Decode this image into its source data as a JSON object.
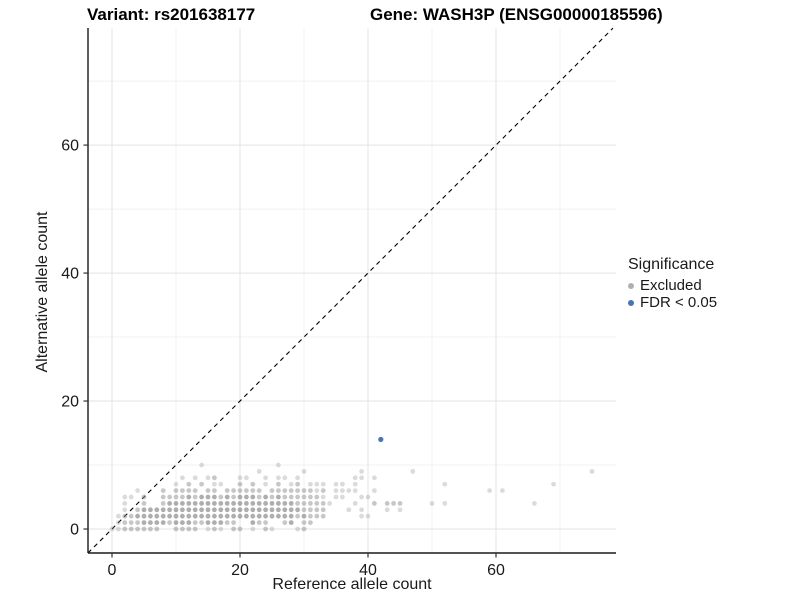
{
  "titles": {
    "variant": "Variant: rs201638177",
    "gene": "Gene: WASH3P (ENSG00000185596)"
  },
  "axes": {
    "x_label": "Reference allele count",
    "y_label": "Alternative allele count"
  },
  "legend": {
    "title": "Significance",
    "items": [
      {
        "label": "Excluded",
        "color": "#b0b0b0"
      },
      {
        "label": "FDR < 0.05",
        "color": "#4575b4"
      }
    ]
  },
  "chart_data": {
    "type": "scatter",
    "xlabel": "Reference allele count",
    "ylabel": "Alternative allele count",
    "xlim": [
      -3.75,
      78.75
    ],
    "ylim": [
      -3.75,
      78.3
    ],
    "x_ticks": [
      0,
      20,
      40,
      60
    ],
    "y_ticks": [
      0,
      20,
      40,
      60
    ],
    "minor_ticks": [
      10,
      30,
      50,
      70
    ],
    "grid": {
      "major_color": "#e3e3e3",
      "minor_color": "#f1f1f1"
    },
    "identity_line": {
      "style": "dashed",
      "color": "#000000",
      "from": -3.75,
      "to": 78.28
    },
    "point_radius": 2.4,
    "series": [
      {
        "name": "Excluded",
        "color": "#8f8f8f",
        "alpha_levels": [
          0.32,
          0.5,
          0.72
        ],
        "points": [
          [
            0,
            0,
            0
          ],
          [
            1,
            0,
            0
          ],
          [
            2,
            0,
            1
          ],
          [
            3,
            0,
            1
          ],
          [
            4,
            0,
            1
          ],
          [
            5,
            0,
            1
          ],
          [
            6,
            0,
            1
          ],
          [
            7,
            0,
            1
          ],
          [
            10,
            0,
            1
          ],
          [
            11,
            0,
            1
          ],
          [
            12,
            0,
            1
          ],
          [
            13,
            0,
            1
          ],
          [
            15,
            0,
            0
          ],
          [
            16,
            0,
            1
          ],
          [
            17,
            0,
            0
          ],
          [
            19,
            0,
            1
          ],
          [
            20,
            0,
            1
          ],
          [
            22,
            0,
            0
          ],
          [
            24,
            0,
            1
          ],
          [
            25,
            0,
            0
          ],
          [
            29,
            0,
            0
          ],
          [
            30,
            0,
            1
          ],
          [
            1,
            1,
            0
          ],
          [
            2,
            1,
            1
          ],
          [
            3,
            1,
            1
          ],
          [
            4,
            1,
            1
          ],
          [
            5,
            1,
            2
          ],
          [
            6,
            1,
            2
          ],
          [
            7,
            1,
            2
          ],
          [
            8,
            1,
            2
          ],
          [
            9,
            1,
            1
          ],
          [
            10,
            1,
            2
          ],
          [
            11,
            1,
            2
          ],
          [
            12,
            1,
            2
          ],
          [
            13,
            1,
            1
          ],
          [
            14,
            1,
            1
          ],
          [
            15,
            1,
            2
          ],
          [
            16,
            1,
            2
          ],
          [
            17,
            1,
            2
          ],
          [
            18,
            1,
            1
          ],
          [
            19,
            1,
            1
          ],
          [
            22,
            1,
            2
          ],
          [
            23,
            1,
            1
          ],
          [
            24,
            1,
            1
          ],
          [
            27,
            1,
            1
          ],
          [
            28,
            1,
            2
          ],
          [
            30,
            1,
            1
          ],
          [
            31,
            1,
            1
          ],
          [
            1,
            2,
            0
          ],
          [
            2,
            2,
            1
          ],
          [
            3,
            2,
            1
          ],
          [
            4,
            2,
            2
          ],
          [
            5,
            2,
            2
          ],
          [
            6,
            2,
            2
          ],
          [
            7,
            2,
            2
          ],
          [
            8,
            2,
            2
          ],
          [
            9,
            2,
            2
          ],
          [
            10,
            2,
            2
          ],
          [
            11,
            2,
            2
          ],
          [
            12,
            2,
            2
          ],
          [
            13,
            2,
            2
          ],
          [
            14,
            2,
            2
          ],
          [
            15,
            2,
            2
          ],
          [
            16,
            2,
            2
          ],
          [
            17,
            2,
            2
          ],
          [
            18,
            2,
            2
          ],
          [
            19,
            2,
            2
          ],
          [
            20,
            2,
            2
          ],
          [
            21,
            2,
            2
          ],
          [
            22,
            2,
            2
          ],
          [
            23,
            2,
            2
          ],
          [
            24,
            2,
            2
          ],
          [
            25,
            2,
            2
          ],
          [
            26,
            2,
            2
          ],
          [
            27,
            2,
            2
          ],
          [
            28,
            2,
            2
          ],
          [
            29,
            2,
            1
          ],
          [
            30,
            2,
            2
          ],
          [
            31,
            2,
            1
          ],
          [
            32,
            2,
            1
          ],
          [
            33,
            2,
            1
          ],
          [
            39,
            2,
            0
          ],
          [
            40,
            2,
            0
          ],
          [
            2,
            3,
            0
          ],
          [
            4,
            3,
            1
          ],
          [
            5,
            3,
            2
          ],
          [
            6,
            3,
            2
          ],
          [
            7,
            3,
            2
          ],
          [
            8,
            3,
            2
          ],
          [
            9,
            3,
            2
          ],
          [
            10,
            3,
            2
          ],
          [
            11,
            3,
            2
          ],
          [
            12,
            3,
            2
          ],
          [
            13,
            3,
            2
          ],
          [
            14,
            3,
            2
          ],
          [
            15,
            3,
            2
          ],
          [
            16,
            3,
            2
          ],
          [
            17,
            3,
            2
          ],
          [
            18,
            3,
            2
          ],
          [
            19,
            3,
            2
          ],
          [
            20,
            3,
            2
          ],
          [
            21,
            3,
            2
          ],
          [
            22,
            3,
            2
          ],
          [
            23,
            3,
            2
          ],
          [
            24,
            3,
            2
          ],
          [
            25,
            3,
            2
          ],
          [
            26,
            3,
            2
          ],
          [
            27,
            3,
            2
          ],
          [
            28,
            3,
            2
          ],
          [
            29,
            3,
            2
          ],
          [
            30,
            3,
            1
          ],
          [
            31,
            3,
            1
          ],
          [
            32,
            3,
            1
          ],
          [
            33,
            3,
            1
          ],
          [
            37,
            3,
            0
          ],
          [
            39,
            3,
            0
          ],
          [
            43,
            3,
            0
          ],
          [
            45,
            3,
            0
          ],
          [
            2,
            4,
            0
          ],
          [
            5,
            4,
            1
          ],
          [
            8,
            4,
            1
          ],
          [
            9,
            4,
            2
          ],
          [
            10,
            4,
            2
          ],
          [
            11,
            4,
            2
          ],
          [
            12,
            4,
            2
          ],
          [
            13,
            4,
            2
          ],
          [
            14,
            4,
            2
          ],
          [
            15,
            4,
            2
          ],
          [
            16,
            4,
            2
          ],
          [
            17,
            4,
            2
          ],
          [
            18,
            4,
            2
          ],
          [
            19,
            4,
            2
          ],
          [
            20,
            4,
            2
          ],
          [
            21,
            4,
            2
          ],
          [
            22,
            4,
            2
          ],
          [
            23,
            4,
            2
          ],
          [
            24,
            4,
            2
          ],
          [
            25,
            4,
            2
          ],
          [
            26,
            4,
            2
          ],
          [
            27,
            4,
            2
          ],
          [
            28,
            4,
            2
          ],
          [
            29,
            4,
            1
          ],
          [
            30,
            4,
            1
          ],
          [
            31,
            4,
            1
          ],
          [
            32,
            4,
            1
          ],
          [
            33,
            4,
            1
          ],
          [
            34,
            4,
            0
          ],
          [
            38,
            4,
            0
          ],
          [
            41,
            4,
            1
          ],
          [
            43,
            4,
            1
          ],
          [
            44,
            4,
            1
          ],
          [
            45,
            4,
            1
          ],
          [
            50,
            4,
            0
          ],
          [
            52,
            4,
            0
          ],
          [
            66,
            4,
            0
          ],
          [
            2,
            5,
            0
          ],
          [
            3,
            5,
            0
          ],
          [
            5,
            5,
            1
          ],
          [
            8,
            5,
            1
          ],
          [
            9,
            5,
            1
          ],
          [
            10,
            5,
            1
          ],
          [
            11,
            5,
            1
          ],
          [
            12,
            5,
            2
          ],
          [
            13,
            5,
            1
          ],
          [
            14,
            5,
            2
          ],
          [
            15,
            5,
            2
          ],
          [
            16,
            5,
            2
          ],
          [
            17,
            5,
            1
          ],
          [
            18,
            5,
            2
          ],
          [
            19,
            5,
            1
          ],
          [
            20,
            5,
            2
          ],
          [
            21,
            5,
            2
          ],
          [
            22,
            5,
            2
          ],
          [
            23,
            5,
            1
          ],
          [
            24,
            5,
            2
          ],
          [
            25,
            5,
            1
          ],
          [
            26,
            5,
            2
          ],
          [
            27,
            5,
            1
          ],
          [
            28,
            5,
            1
          ],
          [
            29,
            5,
            1
          ],
          [
            30,
            5,
            1
          ],
          [
            31,
            5,
            1
          ],
          [
            32,
            5,
            1
          ],
          [
            33,
            5,
            0
          ],
          [
            35,
            5,
            0
          ],
          [
            36,
            5,
            0
          ],
          [
            39,
            5,
            0
          ],
          [
            40,
            5,
            0
          ],
          [
            4,
            6,
            0
          ],
          [
            8,
            6,
            1
          ],
          [
            10,
            6,
            1
          ],
          [
            11,
            6,
            1
          ],
          [
            12,
            6,
            1
          ],
          [
            13,
            6,
            1
          ],
          [
            15,
            6,
            1
          ],
          [
            16,
            6,
            1
          ],
          [
            18,
            6,
            1
          ],
          [
            19,
            6,
            1
          ],
          [
            20,
            6,
            1
          ],
          [
            21,
            6,
            1
          ],
          [
            22,
            6,
            1
          ],
          [
            23,
            6,
            1
          ],
          [
            25,
            6,
            1
          ],
          [
            26,
            6,
            1
          ],
          [
            27,
            6,
            1
          ],
          [
            28,
            6,
            1
          ],
          [
            29,
            6,
            1
          ],
          [
            30,
            6,
            1
          ],
          [
            31,
            6,
            1
          ],
          [
            32,
            6,
            0
          ],
          [
            33,
            6,
            1
          ],
          [
            35,
            6,
            0
          ],
          [
            36,
            6,
            0
          ],
          [
            37,
            6,
            0
          ],
          [
            38,
            6,
            0
          ],
          [
            41,
            6,
            0
          ],
          [
            59,
            6,
            0
          ],
          [
            61,
            6,
            0
          ],
          [
            10,
            7,
            0
          ],
          [
            12,
            7,
            1
          ],
          [
            14,
            7,
            1
          ],
          [
            16,
            7,
            0
          ],
          [
            17,
            7,
            0
          ],
          [
            20,
            7,
            1
          ],
          [
            22,
            7,
            1
          ],
          [
            24,
            7,
            0
          ],
          [
            26,
            7,
            1
          ],
          [
            28,
            7,
            0
          ],
          [
            29,
            7,
            1
          ],
          [
            31,
            7,
            0
          ],
          [
            32,
            7,
            0
          ],
          [
            33,
            7,
            0
          ],
          [
            35,
            7,
            0
          ],
          [
            36,
            7,
            0
          ],
          [
            38,
            7,
            0
          ],
          [
            52,
            7,
            0
          ],
          [
            69,
            7,
            0
          ],
          [
            11,
            8,
            0
          ],
          [
            13,
            8,
            0
          ],
          [
            15,
            8,
            0
          ],
          [
            16,
            8,
            1
          ],
          [
            20,
            8,
            0
          ],
          [
            21,
            8,
            0
          ],
          [
            24,
            8,
            0
          ],
          [
            26,
            8,
            0
          ],
          [
            27,
            8,
            0
          ],
          [
            29,
            8,
            0
          ],
          [
            38,
            8,
            0
          ],
          [
            39,
            8,
            0
          ],
          [
            41,
            8,
            0
          ],
          [
            14,
            10,
            0
          ],
          [
            23,
            9,
            0
          ],
          [
            26,
            10,
            0
          ],
          [
            30,
            9,
            0
          ],
          [
            39,
            9,
            0
          ],
          [
            47,
            9,
            0
          ],
          [
            75,
            9,
            0
          ]
        ]
      },
      {
        "name": "FDR < 0.05",
        "color": "#4575b4",
        "points": [
          [
            42,
            14
          ]
        ]
      }
    ]
  }
}
